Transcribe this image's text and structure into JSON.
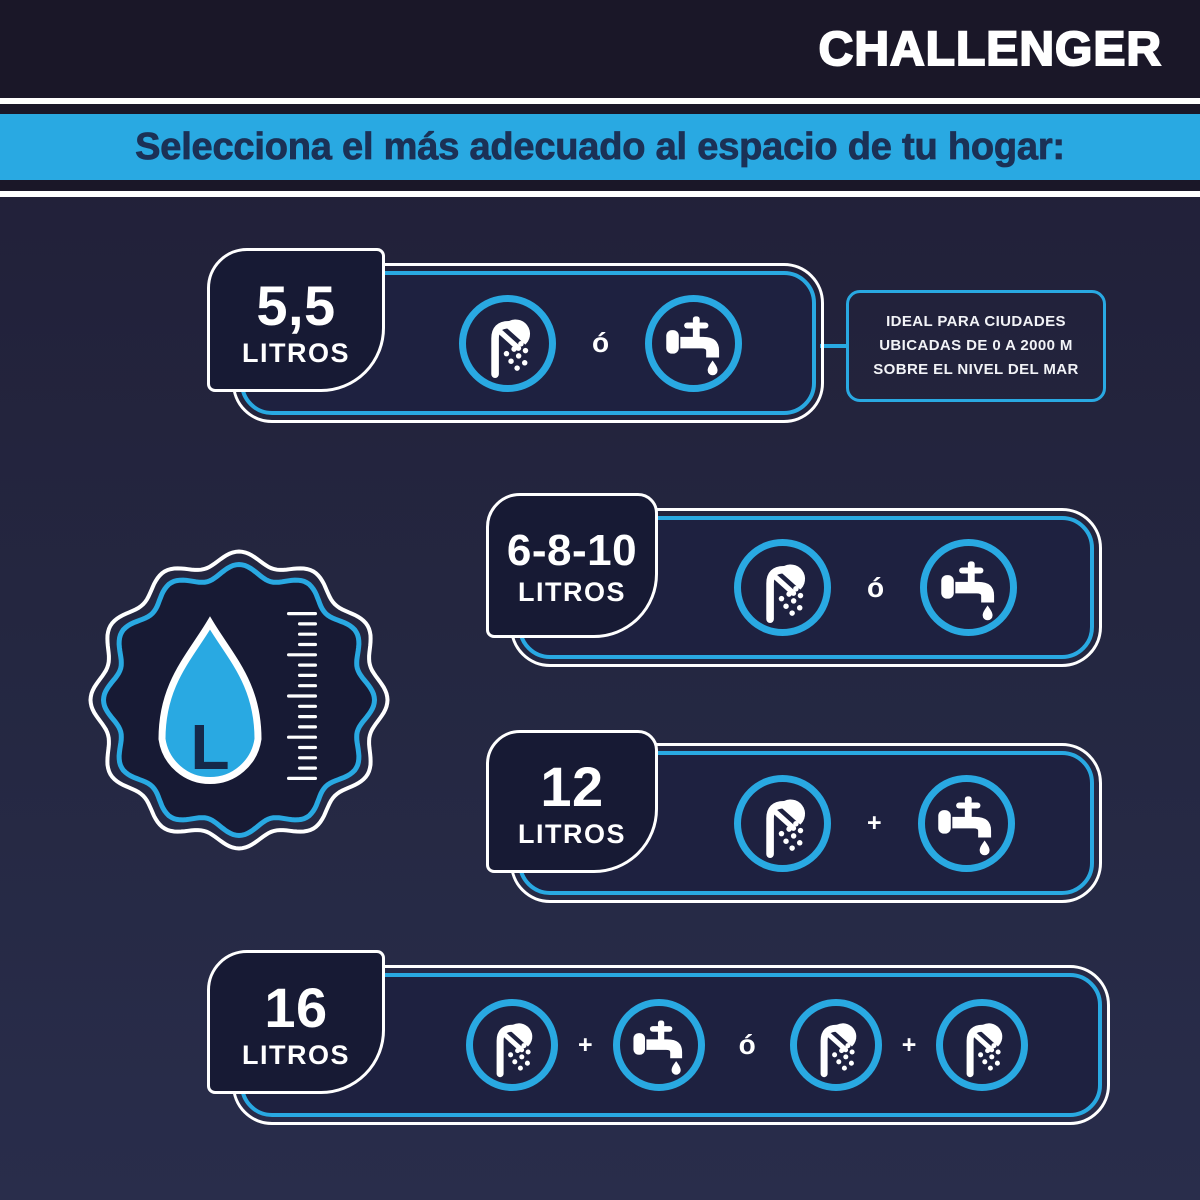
{
  "brand": "CHALLENGER",
  "header": {
    "title": "Selecciona el más adecuado al espacio de tu hogar:"
  },
  "seal": {
    "letter": "L"
  },
  "separators": {
    "o": "ó",
    "plus": "+"
  },
  "rows": [
    {
      "value": "5,5",
      "unit": "LITROS",
      "icons": [
        "shower",
        "o",
        "faucet"
      ],
      "note": {
        "lines": [
          "IDEAL PARA CIUDADES",
          "UBICADAS DE 0 A 2000 M",
          "SOBRE EL NIVEL DEL MAR"
        ]
      }
    },
    {
      "value": "6-8-10",
      "unit": "LITROS",
      "icons": [
        "shower",
        "o",
        "faucet"
      ]
    },
    {
      "value": "12",
      "unit": "LITROS",
      "icons": [
        "shower",
        "plus",
        "faucet"
      ]
    },
    {
      "value": "16",
      "unit": "LITROS",
      "icons": [
        "shower",
        "plus",
        "faucet",
        "o",
        "shower",
        "plus",
        "shower"
      ]
    }
  ],
  "colors": {
    "accent_blue": "#29a9e2",
    "top_band": "#1a1728",
    "panel_navy": "#1e2140",
    "badge_navy": "#171a34",
    "heading_navy": "#1b3156",
    "white": "#ffffff"
  }
}
